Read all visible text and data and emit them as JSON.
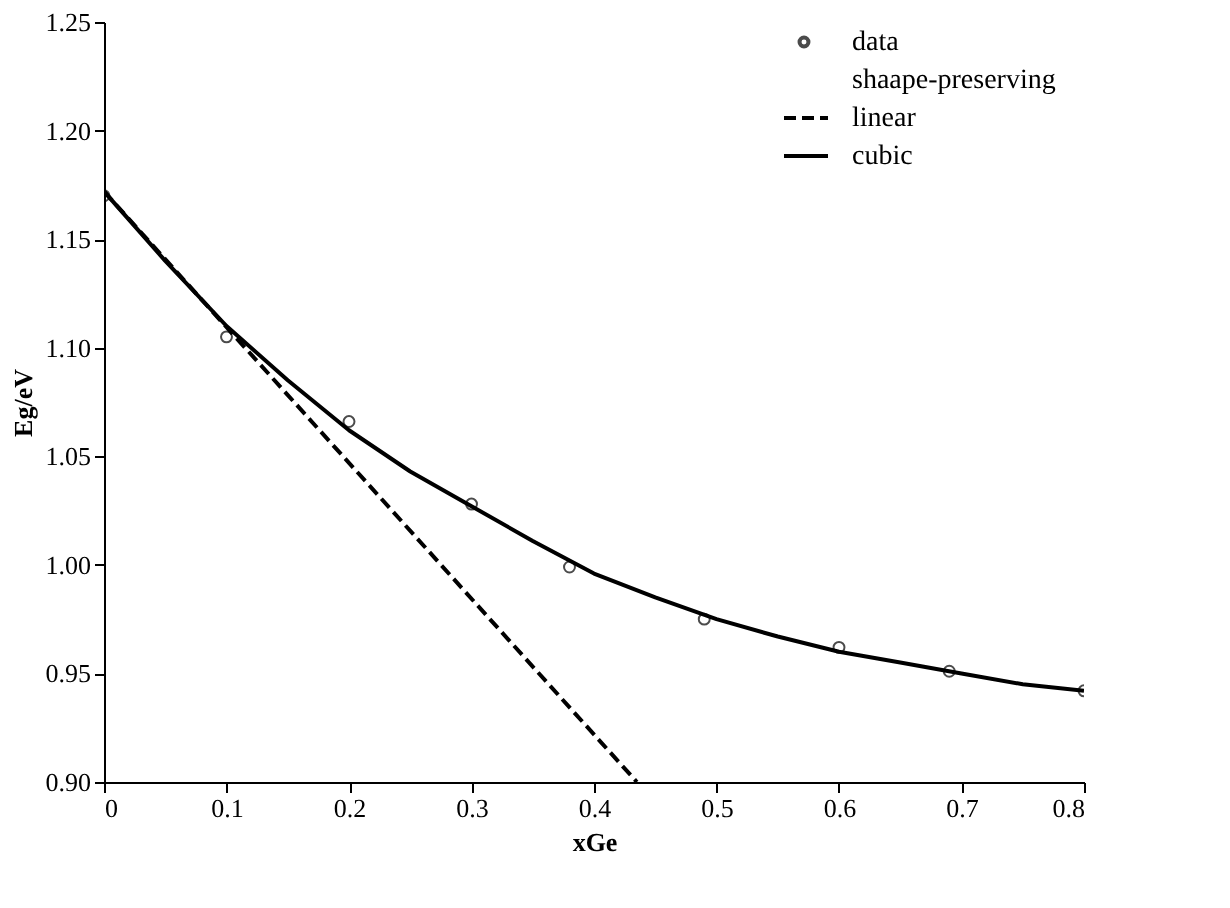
{
  "chart_data": {
    "type": "line",
    "xlabel": "xGe",
    "ylabel": "Eg/eV",
    "xlim": [
      0,
      0.8
    ],
    "xticks": [
      0,
      0.1,
      0.2,
      0.3,
      0.4,
      0.5,
      0.6,
      0.7,
      0.8
    ],
    "ylim": [
      0.9,
      1.25
    ],
    "yticks": [
      {
        "value": 0.9,
        "label": "0.90"
      },
      {
        "value": 0.95,
        "label": "0.95"
      },
      {
        "value": 1.0,
        "label": "1.00"
      },
      {
        "value": 1.05,
        "label": "1.05"
      },
      {
        "value": 1.1,
        "label": "1.10"
      },
      {
        "value": 1.15,
        "label": "1.15"
      },
      {
        "value": 1.2,
        "label": "1.20"
      },
      {
        "value": 1.25,
        "label": "1.25"
      }
    ],
    "grid": false,
    "legend": "top right",
    "annotations": [
      "shaape-preserving"
    ],
    "series": [
      {
        "name": "data",
        "type": "scatter",
        "marker": "circle",
        "color": "#000000",
        "x": [
          0,
          0.1,
          0.2,
          0.3,
          0.38,
          0.49,
          0.6,
          0.69,
          0.8
        ],
        "values": [
          1.17,
          1.105,
          1.066,
          1.028,
          0.999,
          0.975,
          0.962,
          0.951,
          0.942
        ]
      },
      {
        "name": "linear",
        "line_style": "dashed",
        "color": "#000000",
        "x": [
          0,
          0.435
        ],
        "values": [
          1.172,
          0.9
        ]
      },
      {
        "name": "cubic",
        "line_style": "solid",
        "color": "#000000",
        "x": [
          0,
          0.05,
          0.1,
          0.15,
          0.2,
          0.25,
          0.3,
          0.35,
          0.4,
          0.45,
          0.5,
          0.55,
          0.6,
          0.65,
          0.7,
          0.75,
          0.8
        ],
        "values": [
          1.172,
          1.14,
          1.11,
          1.085,
          1.062,
          1.043,
          1.027,
          1.011,
          0.996,
          0.985,
          0.975,
          0.967,
          0.96,
          0.955,
          0.95,
          0.945,
          0.942
        ]
      }
    ]
  }
}
